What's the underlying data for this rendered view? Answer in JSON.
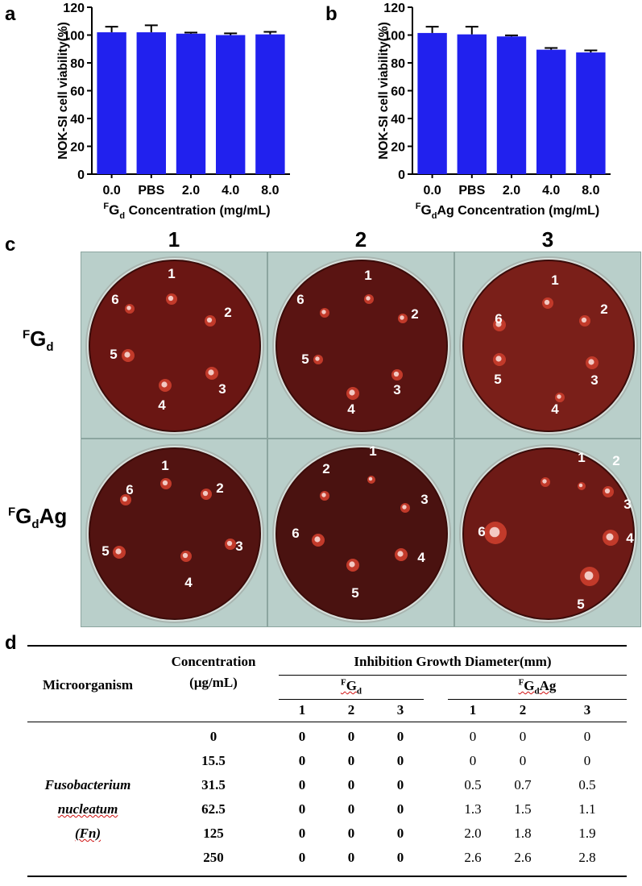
{
  "panels": {
    "a": "a",
    "b": "b",
    "c": "c",
    "d": "d"
  },
  "chart_data": [
    {
      "type": "bar",
      "panel": "a",
      "categories": [
        "0.0",
        "PBS",
        "2.0",
        "4.0",
        "8.0"
      ],
      "values": [
        102,
        102,
        101,
        100,
        100.5
      ],
      "errors": [
        4,
        5,
        0.8,
        1.2,
        1.8
      ],
      "ylabel": "NOK-SI cell  viability(%)",
      "xlabel_main": "G",
      "xlabel_sup": "F",
      "xlabel_sub": "d",
      "xlabel_tail": " Concentration (mg/mL)",
      "ylim": [
        0,
        120
      ],
      "yticks": [
        "0",
        "20",
        "40",
        "60",
        "80",
        "100",
        "120"
      ],
      "bar_color": "#2121ee"
    },
    {
      "type": "bar",
      "panel": "b",
      "categories": [
        "0.0",
        "PBS",
        "2.0",
        "4.0",
        "8.0"
      ],
      "values": [
        101.5,
        100.5,
        99,
        89.5,
        87.5
      ],
      "errors": [
        4.5,
        5.5,
        0.8,
        1.2,
        1.5
      ],
      "ylabel": "NOK-SI cell  viability(%)",
      "xlabel_main": "G",
      "xlabel_sup": "F",
      "xlabel_sub": "d",
      "xlabel_tail": "Ag Concentration (mg/mL)",
      "ylim": [
        0,
        120
      ],
      "yticks": [
        "0",
        "20",
        "40",
        "60",
        "80",
        "100",
        "120"
      ],
      "bar_color": "#2121ee"
    }
  ],
  "plates": {
    "columns": [
      "1",
      "2",
      "3"
    ],
    "row1": {
      "sup": "F",
      "main": "G",
      "sub": "d",
      "tail": ""
    },
    "row2": {
      "sup": "F",
      "main": "G",
      "sub": "d",
      "tail": "Ag"
    },
    "well_labels": [
      "1",
      "2",
      "3",
      "4",
      "5",
      "6"
    ]
  },
  "table": {
    "header_group": "Inhibition Growth Diameter(mm)",
    "col_microorganism": "Microorganism",
    "col_concentration_1": "Concentration",
    "col_concentration_2": "(μg/mL)",
    "group1": {
      "sup": "F",
      "main": "G",
      "sub": "d",
      "tail": ""
    },
    "group2": {
      "sup": "F",
      "main": "G",
      "sub": "d",
      "tail": "Ag"
    },
    "sub_cols": [
      "1",
      "2",
      "3",
      "1",
      "2",
      "3"
    ],
    "organism_line1": "Fusobacterium",
    "organism_line2": "nucleatum",
    "organism_line3": "(Fn)",
    "rows": [
      {
        "conc": "0",
        "v": [
          "0",
          "0",
          "0",
          "0",
          "0",
          "0"
        ]
      },
      {
        "conc": "15.5",
        "v": [
          "0",
          "0",
          "0",
          "0",
          "0",
          "0"
        ]
      },
      {
        "conc": "31.5",
        "v": [
          "0",
          "0",
          "0",
          "0.5",
          "0.7",
          "0.5"
        ]
      },
      {
        "conc": "62.5",
        "v": [
          "0",
          "0",
          "0",
          "1.3",
          "1.5",
          "1.1"
        ]
      },
      {
        "conc": "125",
        "v": [
          "0",
          "0",
          "0",
          "2.0",
          "1.8",
          "1.9"
        ]
      },
      {
        "conc": "250",
        "v": [
          "0",
          "0",
          "0",
          "2.6",
          "2.6",
          "2.8"
        ]
      }
    ]
  }
}
